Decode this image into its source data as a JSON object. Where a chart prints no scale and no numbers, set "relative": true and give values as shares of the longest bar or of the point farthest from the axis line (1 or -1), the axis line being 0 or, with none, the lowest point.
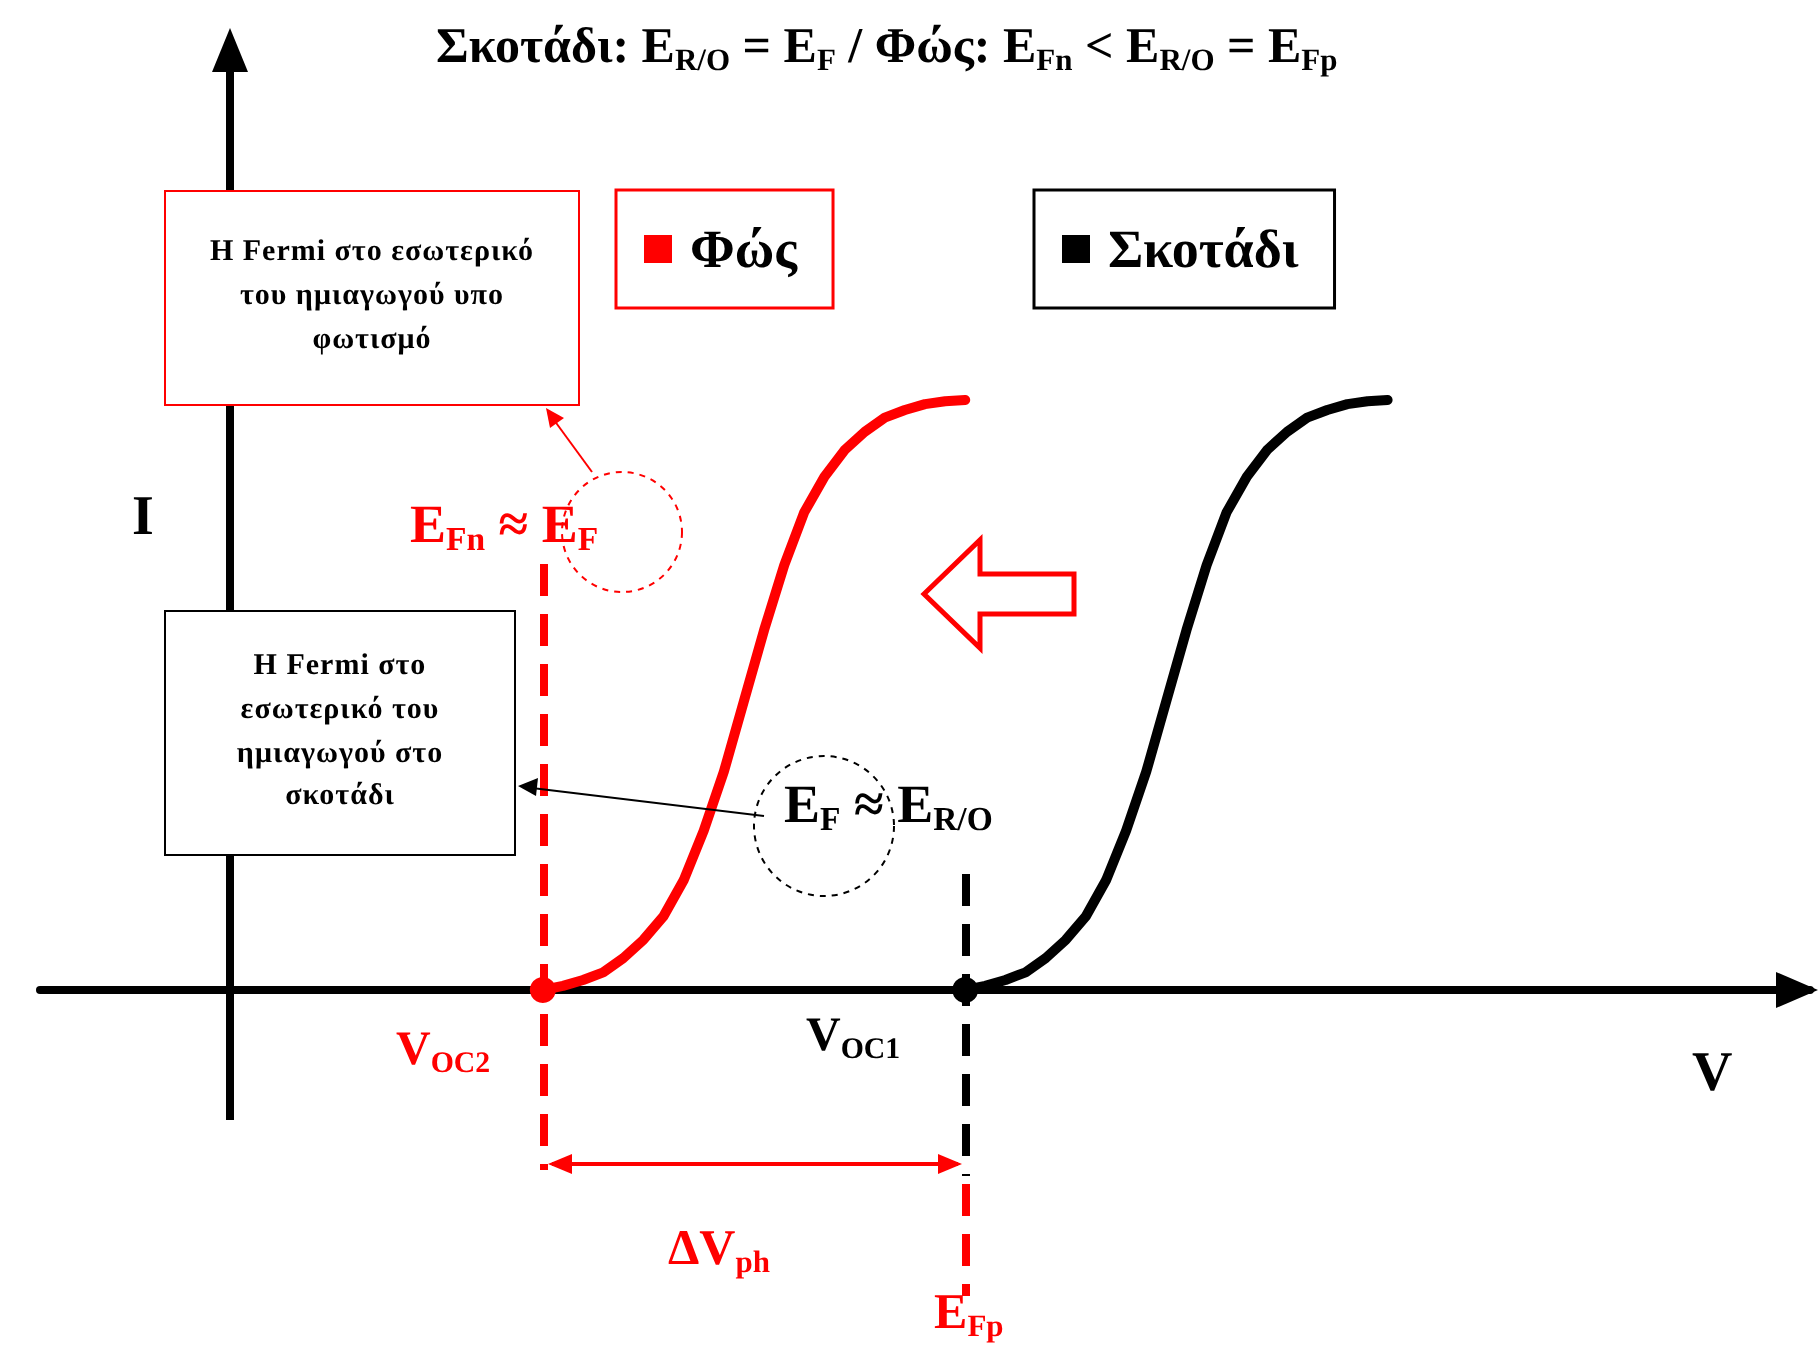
{
  "chart_data": {
    "type": "line",
    "title": "Σκοτάδι: E$_{R/O}$ = E$_{F}$  /  Φώς: E$_{Fn}$ < E$_{R/O}$ = E$_{Fp}$",
    "xlabel": "V",
    "ylabel": "I",
    "relative": true,
    "legend": "top",
    "categories": [
      null,
      null,
      null,
      null,
      null,
      null,
      null,
      null,
      null,
      null,
      null,
      null,
      null,
      null,
      null,
      null,
      null,
      null,
      null,
      null,
      null,
      null,
      null,
      null,
      null,
      null,
      null,
      null,
      null,
      null,
      null,
      null,
      null,
      null,
      null,
      null,
      null,
      null,
      null,
      null,
      null,
      null,
      null,
      null,
      null,
      null,
      null,
      null,
      null,
      null,
      null,
      null,
      null,
      null,
      null,
      null,
      null,
      null,
      null,
      null,
      null,
      null,
      null,
      null,
      null,
      null,
      null,
      null,
      null,
      null,
      null,
      null,
      null,
      null,
      null,
      null,
      null,
      null,
      null,
      null,
      null,
      null,
      null,
      null,
      null,
      null,
      null,
      null,
      null
    ],
    "series": [
      {
        "name": "Φώς",
        "color": "#ff0000",
        "values": [
          null,
          null,
          null,
          null,
          null,
          null,
          null,
          null,
          null,
          null,
          null,
          null,
          null,
          null,
          null,
          null,
          null,
          null,
          null,
          null,
          null,
          null,
          null,
          null,
          null,
          0,
          0.007,
          0.017,
          0.03,
          0.054,
          0.085,
          0.125,
          0.186,
          0.27,
          0.37,
          0.49,
          0.61,
          0.72,
          0.81,
          0.87,
          0.915,
          0.946,
          0.97,
          0.983,
          0.993,
          0.998,
          1,
          null,
          null,
          null,
          null,
          null,
          null,
          null,
          null,
          null,
          null,
          null,
          null,
          null,
          null,
          null,
          null,
          null,
          null,
          null,
          null,
          null,
          null,
          null,
          null,
          null,
          null,
          null,
          null,
          null,
          null,
          null,
          null,
          null,
          null,
          null,
          null,
          null,
          null,
          null,
          null,
          null,
          null
        ]
      },
      {
        "name": "Σκοτάδι",
        "color": "#000000",
        "values": [
          null,
          null,
          null,
          null,
          null,
          null,
          null,
          null,
          null,
          null,
          null,
          null,
          null,
          null,
          null,
          null,
          null,
          null,
          null,
          null,
          null,
          null,
          null,
          null,
          null,
          null,
          null,
          null,
          null,
          null,
          null,
          null,
          null,
          null,
          null,
          null,
          null,
          null,
          null,
          null,
          null,
          null,
          null,
          null,
          null,
          null,
          0,
          0.007,
          0.017,
          0.03,
          0.054,
          0.085,
          0.125,
          0.186,
          0.27,
          0.37,
          0.49,
          0.61,
          0.72,
          0.81,
          0.87,
          0.915,
          0.946,
          0.97,
          0.983,
          0.993,
          0.998,
          1,
          null,
          null,
          null,
          null,
          null,
          null,
          null,
          null,
          null,
          null,
          null,
          null,
          null,
          null,
          null,
          null,
          null,
          null,
          null,
          null,
          null
        ]
      }
    ],
    "annotations": [
      "Η Fermi στο εσωτερικό του ημιαγωγού υπο φωτισμό",
      "Η Fermi στο εσωτερικό του ημιαγωγού στο σκοτάδι",
      "E$_{Fn}$ ≈ E$_{F}$",
      "E$_{F}$ ≈ E$_{R/O}$",
      "V$_{OC2}$",
      "V$_{OC1}$",
      "ΔV$_{ph}$",
      "E$_{Fp}$"
    ]
  }
}
